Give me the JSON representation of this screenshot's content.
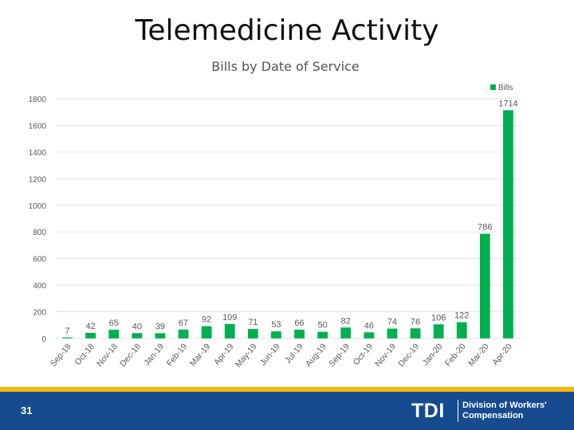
{
  "slide": {
    "title": "Telemedicine Activity",
    "page_number": "31"
  },
  "footer": {
    "logo": "TDI",
    "division_line1": "Division of Workers'",
    "division_line2": "Compensation",
    "bar_color": "#164b8f",
    "accent_color": "#f5b800"
  },
  "chart_data": {
    "type": "bar",
    "title": "Bills by Date of Service",
    "xlabel": "",
    "ylabel": "",
    "ylim": [
      0,
      1800
    ],
    "yticks": [
      0,
      200,
      400,
      600,
      800,
      1000,
      1200,
      1400,
      1600,
      1800
    ],
    "grid": true,
    "legend_position": "top-right",
    "bar_color": "#00b050",
    "categories": [
      "Sep-18",
      "Oct-18",
      "Nov-18",
      "Dec-18",
      "Jan-19",
      "Feb-19",
      "Mar-19",
      "Apr-19",
      "May-19",
      "Jun-19",
      "Jul-19",
      "Aug-19",
      "Sep-19",
      "Oct-19",
      "Nov-19",
      "Dec-19",
      "Jan-20",
      "Feb-20",
      "Mar-20",
      "Apr-20"
    ],
    "series": [
      {
        "name": "Bills",
        "values": [
          7,
          42,
          65,
          40,
          39,
          67,
          92,
          109,
          71,
          53,
          66,
          50,
          82,
          46,
          74,
          76,
          106,
          122,
          786,
          1714
        ]
      }
    ]
  }
}
